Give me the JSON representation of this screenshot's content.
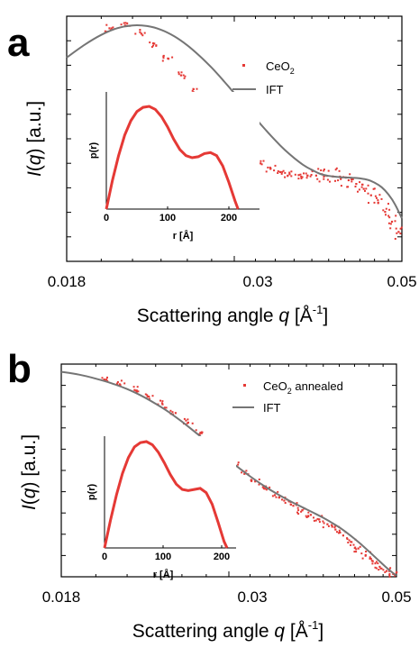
{
  "panels": [
    {
      "letter": "a"
    },
    {
      "letter": "b"
    }
  ],
  "chart_data": [
    {
      "type": "scatter",
      "panel": "a",
      "xlabel": "Scattering angle q [Å⁻¹]",
      "ylabel": "I(q) [a.u.]",
      "xlim": [
        0.018,
        0.05
      ],
      "xscale": "log",
      "yscale": "log",
      "xticks": [
        "0.018",
        "0.03",
        "0.05"
      ],
      "ylim": [
        0,
        1
      ],
      "yticklabels": false,
      "legend_position": "top-right",
      "colors": {
        "data": "#e53935",
        "fit": "#757575"
      },
      "series": [
        {
          "name": "CeO2",
          "kind": "scatter",
          "x": [
            0.0205,
            0.0215,
            0.0225,
            0.0235,
            0.0245,
            0.0255,
            0.0265,
            0.0275,
            0.0285,
            0.0295,
            0.0305,
            0.0315,
            0.0325,
            0.0335,
            0.0345,
            0.0355,
            0.0365,
            0.0375,
            0.0385,
            0.0395,
            0.0405,
            0.0415,
            0.0425,
            0.0435,
            0.0445,
            0.0455,
            0.0465,
            0.0475,
            0.0485,
            0.0495
          ],
          "y": [
            0.962,
            0.975,
            0.945,
            0.893,
            0.826,
            0.75,
            0.673,
            0.599,
            0.532,
            0.474,
            0.424,
            0.384,
            0.353,
            0.33,
            0.314,
            0.304,
            0.3,
            0.298,
            0.298,
            0.297,
            0.294,
            0.288,
            0.277,
            0.26,
            0.238,
            0.209,
            0.174,
            0.134,
            0.09,
            0.044
          ]
        },
        {
          "name": "IFT",
          "kind": "line",
          "x": [
            0.018,
            0.019,
            0.02,
            0.021,
            0.022,
            0.023,
            0.024,
            0.025,
            0.026,
            0.027,
            0.028,
            0.029,
            0.03,
            0.031,
            0.032,
            0.033,
            0.034,
            0.035,
            0.036,
            0.037,
            0.038,
            0.039,
            0.04,
            0.041,
            0.042,
            0.043,
            0.044,
            0.045,
            0.046,
            0.047,
            0.048,
            0.049,
            0.05
          ],
          "y": [
            0.83,
            0.887,
            0.932,
            0.962,
            0.975,
            0.972,
            0.955,
            0.925,
            0.885,
            0.837,
            0.784,
            0.727,
            0.669,
            0.612,
            0.556,
            0.504,
            0.456,
            0.413,
            0.377,
            0.346,
            0.323,
            0.305,
            0.296,
            0.292,
            0.289,
            0.288,
            0.285,
            0.279,
            0.266,
            0.245,
            0.212,
            0.166,
            0.104
          ]
        }
      ],
      "inset": {
        "type": "line",
        "xlabel": "r [Å]",
        "ylabel": "p(r)",
        "xlim": [
          0,
          250
        ],
        "xticks": [
          "0",
          "100",
          "200"
        ],
        "yticklabels": false,
        "series": [
          {
            "name": "",
            "x": [
              0,
              10,
              20,
              30,
              40,
              50,
              60,
              70,
              80,
              90,
              100,
              110,
              120,
              130,
              140,
              150,
              160,
              170,
              180,
              190,
              200,
              210,
              215
            ],
            "y": [
              0,
              0.28,
              0.52,
              0.72,
              0.86,
              0.95,
              0.99,
              1.0,
              0.97,
              0.9,
              0.8,
              0.68,
              0.58,
              0.52,
              0.5,
              0.51,
              0.54,
              0.55,
              0.52,
              0.42,
              0.26,
              0.08,
              0
            ]
          }
        ]
      }
    },
    {
      "type": "scatter",
      "panel": "b",
      "xlabel": "Scattering angle q [Å⁻¹]",
      "ylabel": "I(q) [a.u.]",
      "xlim": [
        0.018,
        0.05
      ],
      "xscale": "log",
      "yscale": "log",
      "xticks": [
        "0.018",
        "0.03",
        "0.05"
      ],
      "ylim": [
        0,
        1
      ],
      "yticklabels": false,
      "legend_position": "top-right",
      "colors": {
        "data": "#e53935",
        "fit": "#757575"
      },
      "series": [
        {
          "name": "CeO2 annealed",
          "kind": "scatter",
          "x": [
            0.0205,
            0.0215,
            0.0225,
            0.0235,
            0.0245,
            0.0255,
            0.0265,
            0.0275,
            0.0285,
            0.0295,
            0.0305,
            0.0315,
            0.0325,
            0.0335,
            0.0345,
            0.0355,
            0.0365,
            0.0375,
            0.0385,
            0.0395,
            0.0405,
            0.0415,
            0.0425,
            0.0435,
            0.0445,
            0.0455,
            0.0465,
            0.0475,
            0.0485,
            0.0495
          ],
          "y": [
            0.935,
            0.914,
            0.887,
            0.856,
            0.82,
            0.779,
            0.734,
            0.686,
            0.636,
            0.586,
            0.539,
            0.496,
            0.457,
            0.423,
            0.393,
            0.367,
            0.343,
            0.321,
            0.3,
            0.279,
            0.256,
            0.231,
            0.203,
            0.173,
            0.142,
            0.111,
            0.082,
            0.056,
            0.036,
            0.022
          ]
        },
        {
          "name": "IFT",
          "kind": "line",
          "x": [
            0.018,
            0.019,
            0.02,
            0.021,
            0.022,
            0.023,
            0.024,
            0.025,
            0.026,
            0.027,
            0.028,
            0.029,
            0.03,
            0.031,
            0.032,
            0.033,
            0.034,
            0.035,
            0.036,
            0.037,
            0.038,
            0.039,
            0.04,
            0.041,
            0.042,
            0.043,
            0.044,
            0.045,
            0.046,
            0.047,
            0.048,
            0.049,
            0.05
          ],
          "y": [
            0.972,
            0.959,
            0.94,
            0.918,
            0.891,
            0.859,
            0.822,
            0.782,
            0.738,
            0.692,
            0.646,
            0.601,
            0.558,
            0.518,
            0.481,
            0.448,
            0.418,
            0.392,
            0.368,
            0.346,
            0.326,
            0.306,
            0.286,
            0.264,
            0.241,
            0.215,
            0.187,
            0.158,
            0.127,
            0.096,
            0.066,
            0.038,
            0.014
          ]
        }
      ],
      "inset": {
        "type": "line",
        "xlabel": "r [Å]",
        "ylabel": "p(r)",
        "xlim": [
          0,
          220
        ],
        "xticks": [
          "0",
          "100",
          "200"
        ],
        "yticklabels": false,
        "series": [
          {
            "name": "",
            "x": [
              0,
              10,
              20,
              30,
              40,
              50,
              60,
              70,
              80,
              90,
              100,
              110,
              120,
              130,
              140,
              150,
              160,
              170,
              180,
              190,
              200,
              205
            ],
            "y": [
              0,
              0.26,
              0.5,
              0.7,
              0.85,
              0.95,
              0.99,
              1.0,
              0.97,
              0.9,
              0.8,
              0.69,
              0.6,
              0.55,
              0.54,
              0.55,
              0.56,
              0.52,
              0.41,
              0.24,
              0.06,
              0
            ]
          }
        ]
      }
    }
  ]
}
